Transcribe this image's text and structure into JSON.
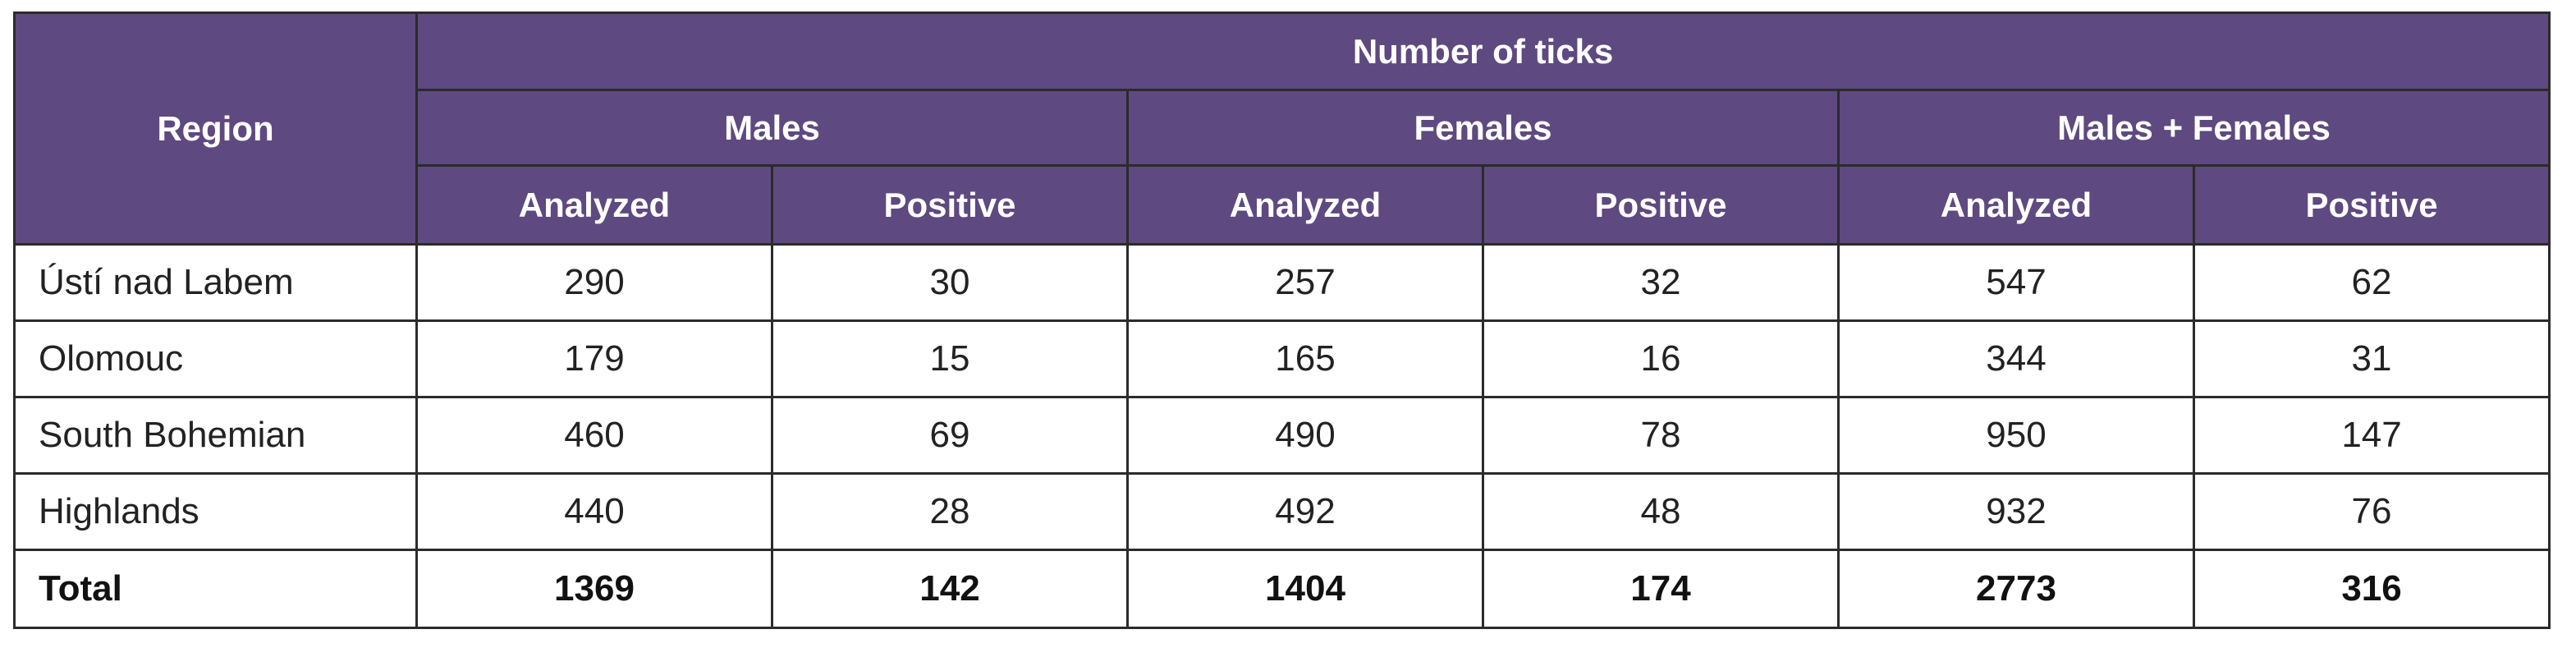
{
  "table": {
    "region_header": "Region",
    "group_header": "Number of ticks",
    "sex_groups": [
      "Males",
      "Females",
      "Males + Females"
    ],
    "sub_headers": [
      "Analyzed",
      "Positive",
      "Analyzed",
      "Positive",
      "Analyzed",
      "Positive"
    ],
    "rows": [
      {
        "region": "Ústí nad Labem",
        "values": [
          "290",
          "30",
          "257",
          "32",
          "547",
          "62"
        ]
      },
      {
        "region": "Olomouc",
        "values": [
          "179",
          "15",
          "165",
          "16",
          "344",
          "31"
        ]
      },
      {
        "region": "South Bohemian",
        "values": [
          "460",
          "69",
          "490",
          "78",
          "950",
          "147"
        ]
      },
      {
        "region": "Highlands",
        "values": [
          "440",
          "28",
          "492",
          "48",
          "932",
          "76"
        ]
      }
    ],
    "total": {
      "region": "Total",
      "values": [
        "1369",
        "142",
        "1404",
        "174",
        "2773",
        "316"
      ]
    }
  },
  "colors": {
    "header_background": "#5e4980",
    "header_text": "#ffffff",
    "border": "#2b2b2b"
  }
}
